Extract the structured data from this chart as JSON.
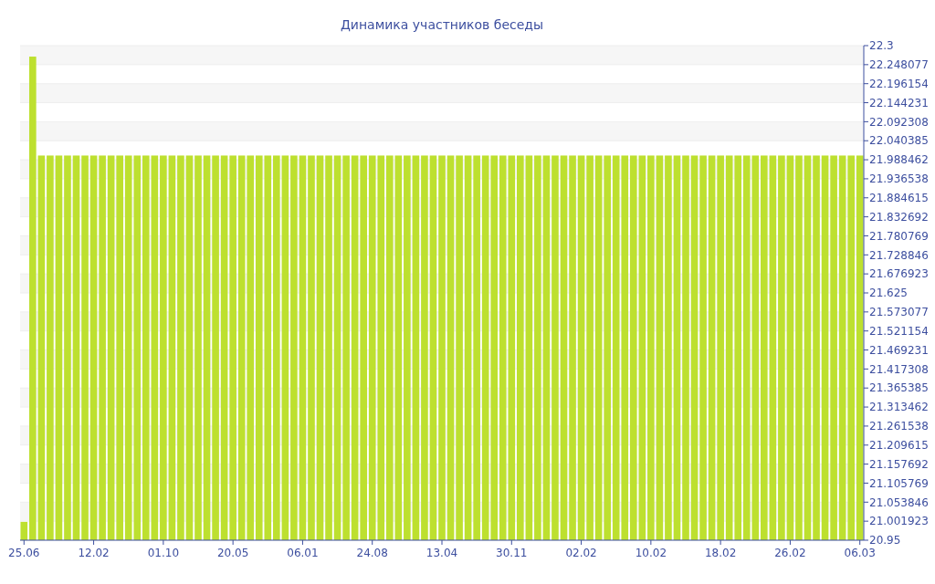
{
  "chart_data": {
    "type": "bar",
    "title": "Динамика участников беседы",
    "categories": [
      "25.06",
      null,
      null,
      null,
      null,
      null,
      null,
      null,
      "12.02",
      null,
      null,
      null,
      null,
      null,
      null,
      null,
      "01.10",
      null,
      null,
      null,
      null,
      null,
      null,
      null,
      "20.05",
      null,
      null,
      null,
      null,
      null,
      null,
      null,
      "06.01",
      null,
      null,
      null,
      null,
      null,
      null,
      null,
      "24.08",
      null,
      null,
      null,
      null,
      null,
      null,
      null,
      "13.04",
      null,
      null,
      null,
      null,
      null,
      null,
      null,
      "30.11",
      null,
      null,
      null,
      null,
      null,
      null,
      null,
      "02.02",
      null,
      null,
      null,
      null,
      null,
      null,
      null,
      "10.02",
      null,
      null,
      null,
      null,
      null,
      null,
      null,
      "18.02",
      null,
      null,
      null,
      null,
      null,
      null,
      null,
      "26.02",
      null,
      null,
      null,
      null,
      null,
      null,
      null,
      "06.03"
    ],
    "values": [
      21,
      22.27,
      22,
      22,
      22,
      22,
      22,
      22,
      22,
      22,
      22,
      22,
      22,
      22,
      22,
      22,
      22,
      22,
      22,
      22,
      22,
      22,
      22,
      22,
      22,
      22,
      22,
      22,
      22,
      22,
      22,
      22,
      22,
      22,
      22,
      22,
      22,
      22,
      22,
      22,
      22,
      22,
      22,
      22,
      22,
      22,
      22,
      22,
      22,
      22,
      22,
      22,
      22,
      22,
      22,
      22,
      22,
      22,
      22,
      22,
      22,
      22,
      22,
      22,
      22,
      22,
      22,
      22,
      22,
      22,
      22,
      22,
      22,
      22,
      22,
      22,
      22,
      22,
      22,
      22,
      22,
      22,
      22,
      22,
      22,
      22,
      22,
      22,
      22,
      22,
      22,
      22,
      22,
      22,
      22,
      22,
      22
    ],
    "color": "#bde02f",
    "ylim": [
      20.95,
      22.3
    ],
    "yticks": [
      20.95,
      21.001923,
      21.053846,
      21.105769,
      21.157692,
      21.209615,
      21.261538,
      21.313462,
      21.365385,
      21.417308,
      21.469231,
      21.521154,
      21.573077,
      21.625,
      21.676923,
      21.728846,
      21.780769,
      21.832692,
      21.884615,
      21.936538,
      21.988462,
      22.040385,
      22.092308,
      22.144231,
      22.196154,
      22.248077,
      22.3
    ],
    "grid": "y"
  }
}
